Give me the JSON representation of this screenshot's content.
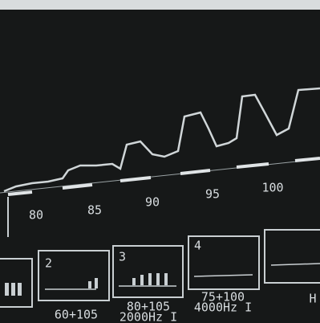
{
  "axis": {
    "labels": [
      "80",
      "85",
      "90",
      "95",
      "100"
    ]
  },
  "panels": [
    {
      "number": "2",
      "caption": "60+105"
    },
    {
      "number": "3",
      "caption": "80+105",
      "sub": "2000Hz I"
    },
    {
      "number": "4",
      "caption": "75+100",
      "sub": "4000Hz I"
    },
    {
      "caption": "H"
    }
  ]
}
